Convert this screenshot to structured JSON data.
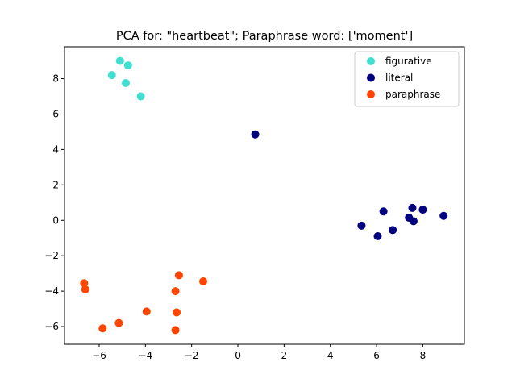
{
  "chart_data": {
    "type": "scatter",
    "title": "PCA for: \"heartbeat\"; Paraphrase word: ['moment']",
    "xlabel": "",
    "ylabel": "",
    "xlim": [
      -7.5,
      9.8
    ],
    "ylim": [
      -7.0,
      9.8
    ],
    "xticks": [
      -6,
      -4,
      -2,
      0,
      2,
      4,
      6,
      8
    ],
    "yticks": [
      -6,
      -4,
      -2,
      0,
      2,
      4,
      6,
      8
    ],
    "xtick_labels": [
      "−6",
      "−4",
      "−2",
      "0",
      "2",
      "4",
      "6",
      "8"
    ],
    "ytick_labels": [
      "−6",
      "−4",
      "−2",
      "0",
      "2",
      "4",
      "6",
      "8"
    ],
    "grid": false,
    "legend_position": "top-right",
    "series": [
      {
        "name": "figurative",
        "color": "#40e0d0",
        "points": [
          {
            "x": -5.1,
            "y": 9.0
          },
          {
            "x": -4.75,
            "y": 8.75
          },
          {
            "x": -5.45,
            "y": 8.2
          },
          {
            "x": -4.85,
            "y": 7.75
          },
          {
            "x": -4.2,
            "y": 7.0
          }
        ]
      },
      {
        "name": "literal",
        "color": "#000080",
        "points": [
          {
            "x": 0.75,
            "y": 4.85
          },
          {
            "x": 7.55,
            "y": 0.7
          },
          {
            "x": 8.0,
            "y": 0.6
          },
          {
            "x": 6.3,
            "y": 0.5
          },
          {
            "x": 7.4,
            "y": 0.15
          },
          {
            "x": 8.9,
            "y": 0.25
          },
          {
            "x": 7.6,
            "y": -0.05
          },
          {
            "x": 5.35,
            "y": -0.3
          },
          {
            "x": 6.7,
            "y": -0.55
          },
          {
            "x": 6.05,
            "y": -0.9
          }
        ]
      },
      {
        "name": "paraphrase",
        "color": "#ff4500",
        "points": [
          {
            "x": -2.55,
            "y": -3.1
          },
          {
            "x": -1.5,
            "y": -3.45
          },
          {
            "x": -6.65,
            "y": -3.55
          },
          {
            "x": -6.6,
            "y": -3.9
          },
          {
            "x": -2.7,
            "y": -4.0
          },
          {
            "x": -3.95,
            "y": -5.15
          },
          {
            "x": -2.65,
            "y": -5.2
          },
          {
            "x": -5.15,
            "y": -5.8
          },
          {
            "x": -5.85,
            "y": -6.1
          },
          {
            "x": -2.7,
            "y": -6.2
          }
        ]
      }
    ]
  }
}
